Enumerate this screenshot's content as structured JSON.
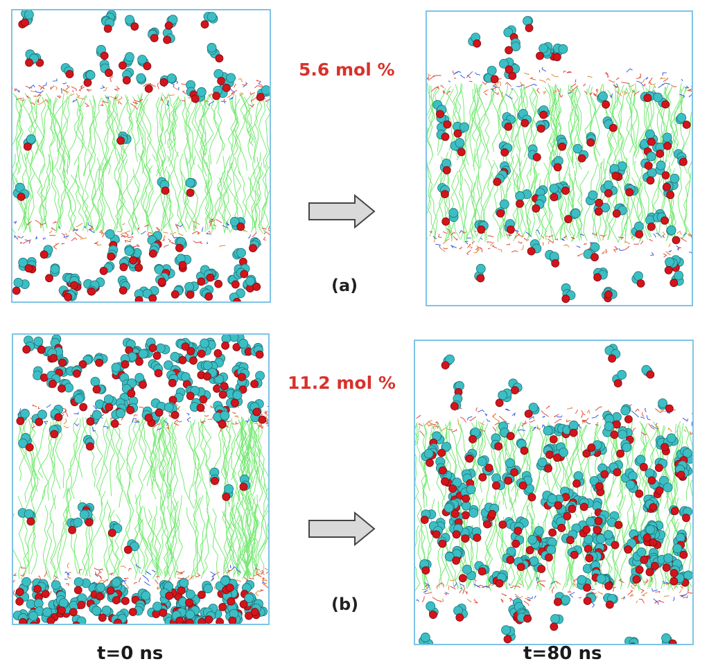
{
  "figure": {
    "rows": [
      {
        "concentration": "5.6 mol %",
        "part": "(a)"
      },
      {
        "concentration": "11.2 mol %",
        "part": "(b)"
      }
    ],
    "time_labels": {
      "start": "t=0 ns",
      "end": "t=80 ns"
    }
  },
  "colors": {
    "box_border": "#7ec3e6",
    "lipid_tail": "#5de65a",
    "headgroup_red": "#e04a3a",
    "headgroup_blue": "#3a5adf",
    "molecule_carbon": "#3bbfc4",
    "molecule_oxygen": "#d4141b",
    "concentration_text": "#d8322b",
    "arrow_fill": "#d9d9d9"
  }
}
